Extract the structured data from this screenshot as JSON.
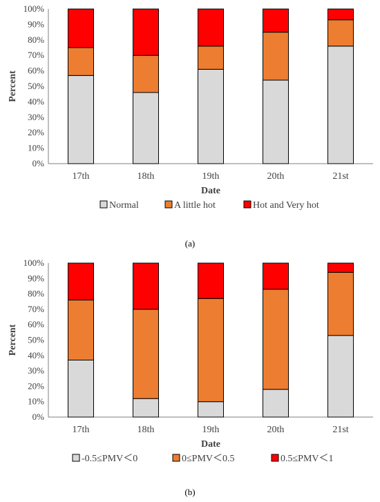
{
  "chart_data": [
    {
      "type": "bar",
      "stacked": true,
      "panel_label": "(a)",
      "xlabel": "Date",
      "ylabel": "Percent",
      "categories": [
        "17th",
        "18th",
        "19th",
        "20th",
        "21st"
      ],
      "y_ticks": [
        "0%",
        "10%",
        "20%",
        "30%",
        "40%",
        "50%",
        "60%",
        "70%",
        "80%",
        "90%",
        "100%"
      ],
      "ylim": [
        0,
        100
      ],
      "grid": false,
      "legend_position": "bottom",
      "series": [
        {
          "name": "Normal",
          "color": "#d9d9d9",
          "values": [
            57,
            46,
            61,
            54,
            76
          ]
        },
        {
          "name": "A little hot",
          "color": "#ed7d31",
          "values": [
            18,
            24,
            15,
            31,
            17
          ]
        },
        {
          "name": "Hot and Very hot",
          "color": "#ff0000",
          "values": [
            25,
            30,
            24,
            15,
            7
          ]
        }
      ]
    },
    {
      "type": "bar",
      "stacked": true,
      "panel_label": "(b)",
      "xlabel": "Date",
      "ylabel": "Percent",
      "categories": [
        "17th",
        "18th",
        "19th",
        "20th",
        "21st"
      ],
      "y_ticks": [
        "0%",
        "10%",
        "20%",
        "30%",
        "40%",
        "50%",
        "60%",
        "70%",
        "80%",
        "90%",
        "100%"
      ],
      "ylim": [
        0,
        100
      ],
      "grid": false,
      "legend_position": "bottom",
      "series": [
        {
          "name": "-0.5≤PMV＜0",
          "color": "#d9d9d9",
          "values": [
            37,
            12,
            10,
            18,
            53
          ]
        },
        {
          "name": "0≤PMV＜0.5",
          "color": "#ed7d31",
          "values": [
            39,
            58,
            67,
            65,
            41
          ]
        },
        {
          "name": "0.5≤PMV＜1",
          "color": "#ff0000",
          "values": [
            24,
            30,
            23,
            17,
            6
          ]
        }
      ]
    }
  ]
}
